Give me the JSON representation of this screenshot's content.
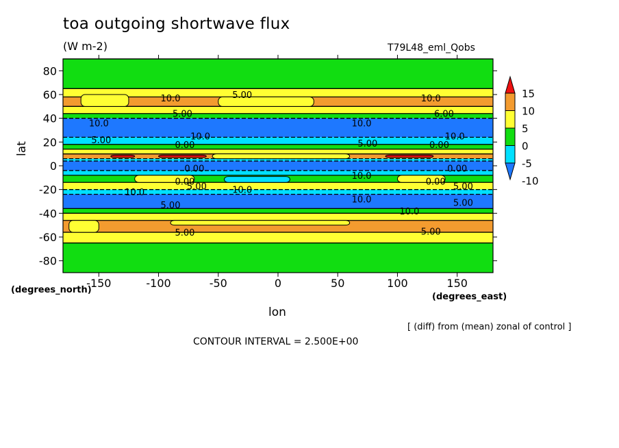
{
  "title": "toa outgoing shortwave flux",
  "units": "(W m-2)",
  "run_label": "T79L48_eml_Qobs",
  "note": "[ (diff) from (mean) zonal of control ]",
  "contour_interval": "CONTOUR INTERVAL = 2.500E+00",
  "chart_data": {
    "type": "heatmap",
    "title": "toa outgoing shortwave flux",
    "xlabel": "lon",
    "ylabel": "lat",
    "x_unit_label": "(degrees_east)",
    "y_unit_label": "(degrees_north)",
    "xlim": [
      -180,
      180
    ],
    "ylim": [
      -90,
      90
    ],
    "x_ticks": [
      -150,
      -100,
      -50,
      0,
      50,
      100,
      150
    ],
    "y_ticks": [
      -80,
      -60,
      -40,
      -20,
      0,
      20,
      40,
      60,
      80
    ],
    "colorbar": {
      "levels": [
        -10,
        -5,
        0,
        5,
        10,
        15
      ],
      "colors": [
        "#1e78ff",
        "#00e0ff",
        "#11dd11",
        "#ffff33",
        "#f39b2f",
        "#ee1111"
      ]
    },
    "zonal_bands": [
      {
        "lat_range": [
          65,
          90
        ],
        "value": 0
      },
      {
        "lat_range": [
          58,
          65
        ],
        "value": 5
      },
      {
        "lat_range": [
          50,
          58
        ],
        "value": 10
      },
      {
        "lat_range": [
          44,
          50
        ],
        "value": 5
      },
      {
        "lat_range": [
          40,
          44
        ],
        "value": 0
      },
      {
        "lat_range": [
          24,
          40
        ],
        "value": -10
      },
      {
        "lat_range": [
          18,
          24
        ],
        "value": -5
      },
      {
        "lat_range": [
          14,
          18
        ],
        "value": 0
      },
      {
        "lat_range": [
          10,
          14
        ],
        "value": 5
      },
      {
        "lat_range": [
          6,
          10
        ],
        "value": 10
      },
      {
        "lat_range": [
          4,
          6
        ],
        "value": -5
      },
      {
        "lat_range": [
          -4,
          4
        ],
        "value": -10
      },
      {
        "lat_range": [
          -8,
          -4
        ],
        "value": -5
      },
      {
        "lat_range": [
          -14,
          -8
        ],
        "value": 0
      },
      {
        "lat_range": [
          -20,
          -14
        ],
        "value": 5
      },
      {
        "lat_range": [
          -24,
          -20
        ],
        "value": -5
      },
      {
        "lat_range": [
          -36,
          -24
        ],
        "value": -10
      },
      {
        "lat_range": [
          -40,
          -36
        ],
        "value": 0
      },
      {
        "lat_range": [
          -46,
          -40
        ],
        "value": 5
      },
      {
        "lat_range": [
          -56,
          -46
        ],
        "value": 10
      },
      {
        "lat_range": [
          -65,
          -56
        ],
        "value": 5
      },
      {
        "lat_range": [
          -90,
          -65
        ],
        "value": 0
      }
    ],
    "patches": [
      {
        "lon": [
          -165,
          -125
        ],
        "lat": [
          50,
          60
        ],
        "value": 5
      },
      {
        "lon": [
          -50,
          30
        ],
        "lat": [
          50,
          58
        ],
        "value": 5
      },
      {
        "lon": [
          -55,
          60
        ],
        "lat": [
          6,
          10
        ],
        "value": 5
      },
      {
        "lon": [
          -100,
          -60
        ],
        "lat": [
          7,
          9
        ],
        "value": 15
      },
      {
        "lon": [
          90,
          130
        ],
        "lat": [
          7,
          9
        ],
        "value": 15
      },
      {
        "lon": [
          -140,
          -120
        ],
        "lat": [
          7,
          9
        ],
        "value": 15
      },
      {
        "lon": [
          -120,
          -70
        ],
        "lat": [
          -14,
          -8
        ],
        "value": 5
      },
      {
        "lon": [
          100,
          140
        ],
        "lat": [
          -14,
          -8
        ],
        "value": 5
      },
      {
        "lon": [
          -45,
          10
        ],
        "lat": [
          -14,
          -9
        ],
        "value": -5
      },
      {
        "lon": [
          -175,
          -150
        ],
        "lat": [
          -56,
          -46
        ],
        "value": 5
      },
      {
        "lon": [
          -90,
          60
        ],
        "lat": [
          -50,
          -46
        ],
        "value": 5
      }
    ],
    "contour_labels": [
      {
        "text": "10.0",
        "lon": -90,
        "lat": 57
      },
      {
        "text": "5.00",
        "lon": -30,
        "lat": 60
      },
      {
        "text": "10.0",
        "lon": 128,
        "lat": 57
      },
      {
        "text": "5.00",
        "lon": -80,
        "lat": 44
      },
      {
        "text": "6.00",
        "lon": 139,
        "lat": 44
      },
      {
        "text": "10.0",
        "lon": -150,
        "lat": 36
      },
      {
        "text": "10.0",
        "lon": 70,
        "lat": 36
      },
      {
        "text": "10.0",
        "lon": -65,
        "lat": 25
      },
      {
        "text": "10.0",
        "lon": 148,
        "lat": 25
      },
      {
        "text": "5.00",
        "lon": -148,
        "lat": 22
      },
      {
        "text": "5.00",
        "lon": 75,
        "lat": 19
      },
      {
        "text": "0.00",
        "lon": -78,
        "lat": 18
      },
      {
        "text": "0.00",
        "lon": 135,
        "lat": 18
      },
      {
        "text": "0.00",
        "lon": -70,
        "lat": -2
      },
      {
        "text": "0.00",
        "lon": 150,
        "lat": -2
      },
      {
        "text": "10.0",
        "lon": 70,
        "lat": -8
      },
      {
        "text": "0.00",
        "lon": -78,
        "lat": -13
      },
      {
        "text": "5.00",
        "lon": -68,
        "lat": -17
      },
      {
        "text": "0.00",
        "lon": 132,
        "lat": -13
      },
      {
        "text": "5.00",
        "lon": 155,
        "lat": -17
      },
      {
        "text": "10.0",
        "lon": -120,
        "lat": -22
      },
      {
        "text": "10.0",
        "lon": -30,
        "lat": -20
      },
      {
        "text": "10.0",
        "lon": 70,
        "lat": -28
      },
      {
        "text": "5.00",
        "lon": -90,
        "lat": -33
      },
      {
        "text": "5.00",
        "lon": 155,
        "lat": -31
      },
      {
        "text": "10.0",
        "lon": 110,
        "lat": -38
      },
      {
        "text": "5.00",
        "lon": -78,
        "lat": -56
      },
      {
        "text": "5.00",
        "lon": 128,
        "lat": -55
      }
    ]
  }
}
